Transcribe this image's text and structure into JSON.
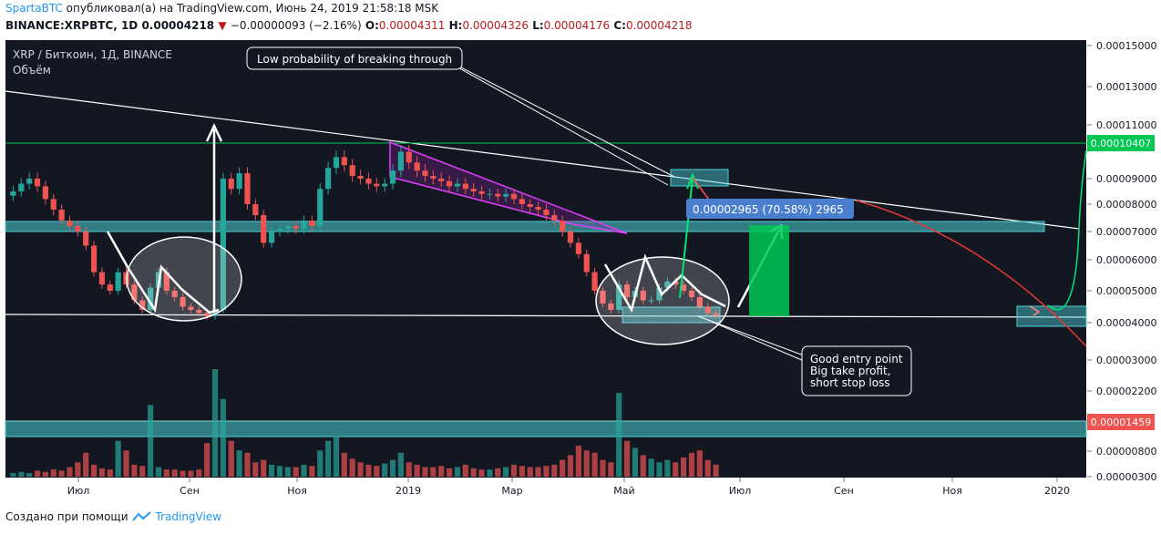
{
  "header": {
    "author": "SpartaBTC",
    "published_text": "опубликовал(а) на TradingView.com, Июнь 24, 2019 21:58:18 MSK",
    "symbol_line": "BINANCE:XRPBTC, 1D",
    "last": "0.00004218",
    "change": "−0.00000093 (−2.16%)",
    "o_label": "O:",
    "o": "0.00004311",
    "h_label": "H:",
    "h": "0.00004326",
    "l_label": "L:",
    "l": "0.00004176",
    "c_label": "C:",
    "c": "0.00004218"
  },
  "footer": {
    "created_with": "Создано при помощи",
    "brand": "TradingView"
  },
  "colors": {
    "bg": "#131722",
    "up": "#26a69a",
    "down": "#ef5350",
    "zone": "#4dd0d6",
    "green": "#00c853"
  },
  "chart_data": {
    "type": "line",
    "title": "XRP / Биткоин, 1Д, BINANCE",
    "subtitle": "Объём",
    "price_axis_ticks": [
      "0.00015000",
      "0.00013000",
      "0.00011000",
      "0.00009000",
      "0.00008000",
      "0.00007000",
      "0.00006000",
      "0.00005000",
      "0.00004000",
      "0.00003000",
      "0.00002200",
      "0.00001459",
      "0.00000800",
      "0.00000300"
    ],
    "time_axis_ticks": [
      "Июл",
      "Сен",
      "Ноя",
      "2019",
      "Мар",
      "Май",
      "Июл",
      "Сен",
      "Ноя",
      "2020"
    ],
    "price_labels": {
      "green_level": "0.00010407",
      "red_level": "0.00001459"
    },
    "annotations": {
      "top_note": "Low probability of breaking through",
      "measure": "0.00002965 (70.58%) 2965",
      "entry_note": [
        "Good entry point",
        "Big take profit,",
        "short stop loss"
      ]
    },
    "series": [
      {
        "name": "XRPBTC",
        "close": [
          8.5e-05,
          8.8e-05,
          9e-05,
          8.7e-05,
          8.2e-05,
          7.8e-05,
          7.4e-05,
          7.2e-05,
          7e-05,
          6.5e-05,
          5.6e-05,
          5.2e-05,
          5e-05,
          5.6e-05,
          5.2e-05,
          4.7e-05,
          4.4e-05,
          5.1e-05,
          5.6e-05,
          5e-05,
          4.8e-05,
          4.5e-05,
          4.4e-05,
          4.3e-05,
          4.2e-05,
          4.4e-05,
          9e-05,
          8.6e-05,
          9.2e-05,
          8e-05,
          7.6e-05,
          6.6e-05,
          7e-05,
          7.1e-05,
          7.2e-05,
          7.1e-05,
          7.4e-05,
          7.2e-05,
          8.6e-05,
          9.4e-05,
          9.8e-05,
          9.5e-05,
          9.1e-05,
          9e-05,
          8.8e-05,
          8.7e-05,
          8.8e-05,
          9.3e-05,
          0.0001,
          9.6e-05,
          9.3e-05,
          9.1e-05,
          9e-05,
          8.9e-05,
          8.7e-05,
          8.8e-05,
          8.6e-05,
          8.5e-05,
          8.4e-05,
          8.4e-05,
          8.3e-05,
          8.4e-05,
          8.2e-05,
          8e-05,
          7.9e-05,
          7.8e-05,
          7.6e-05,
          7.4e-05,
          7e-05,
          6.6e-05,
          6.2e-05,
          5.6e-05,
          5e-05,
          4.6e-05,
          4.4e-05,
          5.2e-05,
          4.8e-05,
          5e-05,
          4.7e-05,
          4.7e-05,
          5.1e-05,
          5.3e-05,
          5.2e-05,
          5e-05,
          4.8e-05,
          4.5e-05,
          4.3e-05,
          4.22e-05
        ]
      }
    ],
    "volume": [
      3,
      4,
      3,
      5,
      4,
      6,
      5,
      8,
      12,
      20,
      10,
      7,
      6,
      30,
      22,
      10,
      9,
      60,
      8,
      6,
      6,
      5,
      5,
      6,
      28,
      90,
      65,
      30,
      22,
      20,
      12,
      14,
      10,
      9,
      8,
      8,
      10,
      9,
      22,
      30,
      34,
      20,
      15,
      12,
      10,
      9,
      11,
      14,
      20,
      12,
      10,
      8,
      8,
      9,
      7,
      8,
      10,
      7,
      6,
      6,
      7,
      8,
      10,
      9,
      8,
      8,
      9,
      10,
      14,
      18,
      26,
      22,
      20,
      14,
      12,
      70,
      30,
      24,
      18,
      15,
      12,
      14,
      12,
      16,
      20,
      22,
      14,
      10
    ]
  }
}
